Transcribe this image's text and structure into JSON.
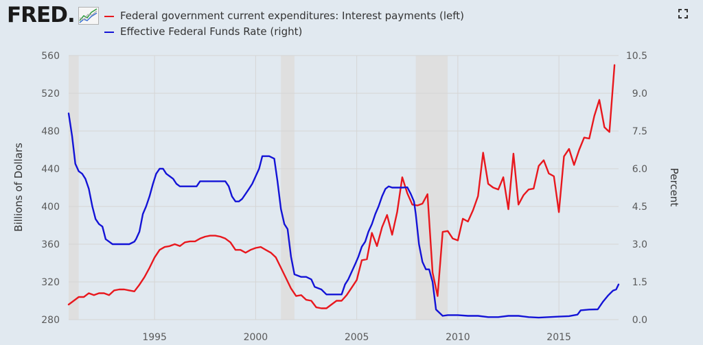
{
  "header": {
    "logo_text": "FRED",
    "logo_dot": ".",
    "logo_icon": "line-graph-icon",
    "fullscreen_icon": "fullscreen-icon"
  },
  "colors": {
    "background": "#e1e9f0",
    "recession": "#dfdfdf",
    "grid": "#d5d5d5",
    "interest": "#e8171d",
    "ffr": "#1313d6"
  },
  "chart_data": {
    "type": "line",
    "title": "",
    "xlabel": "",
    "ylabel_left": "Billions of Dollars",
    "ylabel_right": "Percent",
    "xlim": [
      1990.75,
      2017.95
    ],
    "ylim_left": [
      280,
      560
    ],
    "ylim_right": [
      0,
      10.5
    ],
    "x_ticks": [
      1995,
      2000,
      2005,
      2010,
      2015
    ],
    "x_tick_labels": [
      "1995",
      "2000",
      "2005",
      "2010",
      "2015"
    ],
    "y_ticks_left": [
      280,
      320,
      360,
      400,
      440,
      480,
      520,
      560
    ],
    "y_ticks_right": [
      0.0,
      1.5,
      3.0,
      4.5,
      6.0,
      7.5,
      9.0,
      10.5
    ],
    "y_tick_labels_right": [
      "0.0",
      "1.5",
      "3.0",
      "4.5",
      "6.0",
      "7.5",
      "9.0",
      "10.5"
    ],
    "grid": true,
    "legend_position": "top-left",
    "recessions": [
      [
        1990.75,
        1991.25
      ],
      [
        2001.25,
        2001.92
      ],
      [
        2007.92,
        2009.5
      ]
    ],
    "series": [
      {
        "name": "Federal government current expenditures: Interest payments (left)",
        "axis": "left",
        "color": "#e8171d",
        "x": [
          1990.75,
          1991.0,
          1991.25,
          1991.5,
          1991.75,
          1992.0,
          1992.25,
          1992.5,
          1992.75,
          1993.0,
          1993.25,
          1993.5,
          1993.75,
          1994.0,
          1994.25,
          1994.5,
          1994.75,
          1995.0,
          1995.25,
          1995.5,
          1995.75,
          1996.0,
          1996.25,
          1996.5,
          1996.75,
          1997.0,
          1997.25,
          1997.5,
          1997.75,
          1998.0,
          1998.25,
          1998.5,
          1998.75,
          1999.0,
          1999.25,
          1999.5,
          1999.75,
          2000.0,
          2000.25,
          2000.5,
          2000.75,
          2001.0,
          2001.25,
          2001.5,
          2001.75,
          2002.0,
          2002.25,
          2002.5,
          2002.75,
          2003.0,
          2003.25,
          2003.5,
          2003.75,
          2004.0,
          2004.25,
          2004.5,
          2004.75,
          2005.0,
          2005.25,
          2005.5,
          2005.75,
          2006.0,
          2006.25,
          2006.5,
          2006.75,
          2007.0,
          2007.25,
          2007.5,
          2007.75,
          2008.0,
          2008.25,
          2008.5,
          2008.75,
          2009.0,
          2009.25,
          2009.5,
          2009.75,
          2010.0,
          2010.25,
          2010.5,
          2010.75,
          2011.0,
          2011.25,
          2011.5,
          2011.75,
          2012.0,
          2012.25,
          2012.5,
          2012.75,
          2013.0,
          2013.25,
          2013.5,
          2013.75,
          2014.0,
          2014.25,
          2014.5,
          2014.75,
          2015.0,
          2015.25,
          2015.5,
          2015.75,
          2016.0,
          2016.25,
          2016.5,
          2016.75,
          2017.0,
          2017.25,
          2017.5,
          2017.75
        ],
        "values": [
          296,
          300,
          304,
          304,
          308,
          306,
          308,
          308,
          306,
          311,
          312,
          312,
          311,
          310,
          317,
          325,
          335,
          346,
          354,
          357,
          358,
          360,
          358,
          362,
          363,
          363,
          366,
          368,
          369,
          369,
          368,
          366,
          362,
          354,
          354,
          351,
          354,
          356,
          357,
          354,
          351,
          346,
          335,
          324,
          313,
          305,
          306,
          301,
          300,
          293,
          292,
          292,
          296,
          300,
          300,
          306,
          314,
          322,
          343,
          344,
          372,
          358,
          378,
          391,
          370,
          394,
          431,
          414,
          402,
          401,
          403,
          413,
          330,
          305,
          373,
          374,
          366,
          364,
          387,
          384,
          396,
          411,
          457,
          424,
          420,
          418,
          431,
          397,
          456,
          402,
          412,
          418,
          419,
          443,
          449,
          435,
          432,
          394,
          453,
          461,
          444,
          460,
          473,
          472,
          496,
          513,
          484,
          479,
          550
        ]
      },
      {
        "name": "Effective Federal Funds Rate (right)",
        "axis": "right",
        "color": "#1313d6",
        "x": [
          1990.75,
          1990.92,
          1991.08,
          1991.25,
          1991.42,
          1991.58,
          1991.75,
          1991.92,
          1992.08,
          1992.25,
          1992.42,
          1992.58,
          1992.75,
          1992.92,
          1993.08,
          1993.25,
          1993.5,
          1993.75,
          1994.0,
          1994.08,
          1994.25,
          1994.42,
          1994.58,
          1994.75,
          1994.92,
          1995.08,
          1995.25,
          1995.42,
          1995.58,
          1995.75,
          1995.92,
          1996.08,
          1996.25,
          1996.42,
          1996.58,
          1996.75,
          1996.92,
          1997.08,
          1997.25,
          1997.5,
          1997.75,
          1998.0,
          1998.25,
          1998.5,
          1998.67,
          1998.83,
          1999.0,
          1999.17,
          1999.33,
          1999.5,
          1999.67,
          1999.83,
          2000.0,
          2000.17,
          2000.33,
          2000.5,
          2000.67,
          2000.92,
          2001.08,
          2001.25,
          2001.42,
          2001.58,
          2001.75,
          2001.92,
          2002.25,
          2002.5,
          2002.75,
          2002.92,
          2003.25,
          2003.5,
          2003.75,
          2004.0,
          2004.25,
          2004.42,
          2004.58,
          2004.75,
          2004.92,
          2005.08,
          2005.25,
          2005.42,
          2005.58,
          2005.75,
          2005.92,
          2006.08,
          2006.25,
          2006.42,
          2006.58,
          2006.75,
          2007.0,
          2007.25,
          2007.5,
          2007.67,
          2007.83,
          2007.92,
          2008.08,
          2008.25,
          2008.42,
          2008.58,
          2008.75,
          2008.92,
          2009.25,
          2009.5,
          2010.0,
          2010.5,
          2011.0,
          2011.5,
          2012.0,
          2012.5,
          2013.0,
          2013.5,
          2014.0,
          2014.5,
          2015.0,
          2015.5,
          2015.92,
          2016.08,
          2016.5,
          2016.92,
          2017.17,
          2017.42,
          2017.67,
          2017.83,
          2017.95
        ],
        "values": [
          8.2,
          7.3,
          6.2,
          5.9,
          5.8,
          5.6,
          5.2,
          4.5,
          4.0,
          3.8,
          3.7,
          3.2,
          3.1,
          3.0,
          3.0,
          3.0,
          3.0,
          3.0,
          3.1,
          3.2,
          3.5,
          4.2,
          4.5,
          4.9,
          5.4,
          5.8,
          6.0,
          6.0,
          5.8,
          5.7,
          5.6,
          5.4,
          5.3,
          5.3,
          5.3,
          5.3,
          5.3,
          5.3,
          5.5,
          5.5,
          5.5,
          5.5,
          5.5,
          5.5,
          5.3,
          4.9,
          4.7,
          4.7,
          4.8,
          5.0,
          5.2,
          5.4,
          5.7,
          6.0,
          6.5,
          6.5,
          6.5,
          6.4,
          5.5,
          4.4,
          3.8,
          3.6,
          2.5,
          1.8,
          1.7,
          1.7,
          1.6,
          1.3,
          1.2,
          1.0,
          1.0,
          1.0,
          1.0,
          1.4,
          1.6,
          1.9,
          2.2,
          2.5,
          2.9,
          3.1,
          3.5,
          3.8,
          4.2,
          4.5,
          4.9,
          5.2,
          5.3,
          5.25,
          5.25,
          5.25,
          5.26,
          5.0,
          4.7,
          4.2,
          3.0,
          2.3,
          2.0,
          2.0,
          1.5,
          0.4,
          0.15,
          0.18,
          0.18,
          0.15,
          0.15,
          0.1,
          0.1,
          0.15,
          0.15,
          0.1,
          0.08,
          0.1,
          0.12,
          0.14,
          0.2,
          0.37,
          0.4,
          0.41,
          0.7,
          0.95,
          1.15,
          1.2,
          1.4
        ]
      }
    ]
  }
}
